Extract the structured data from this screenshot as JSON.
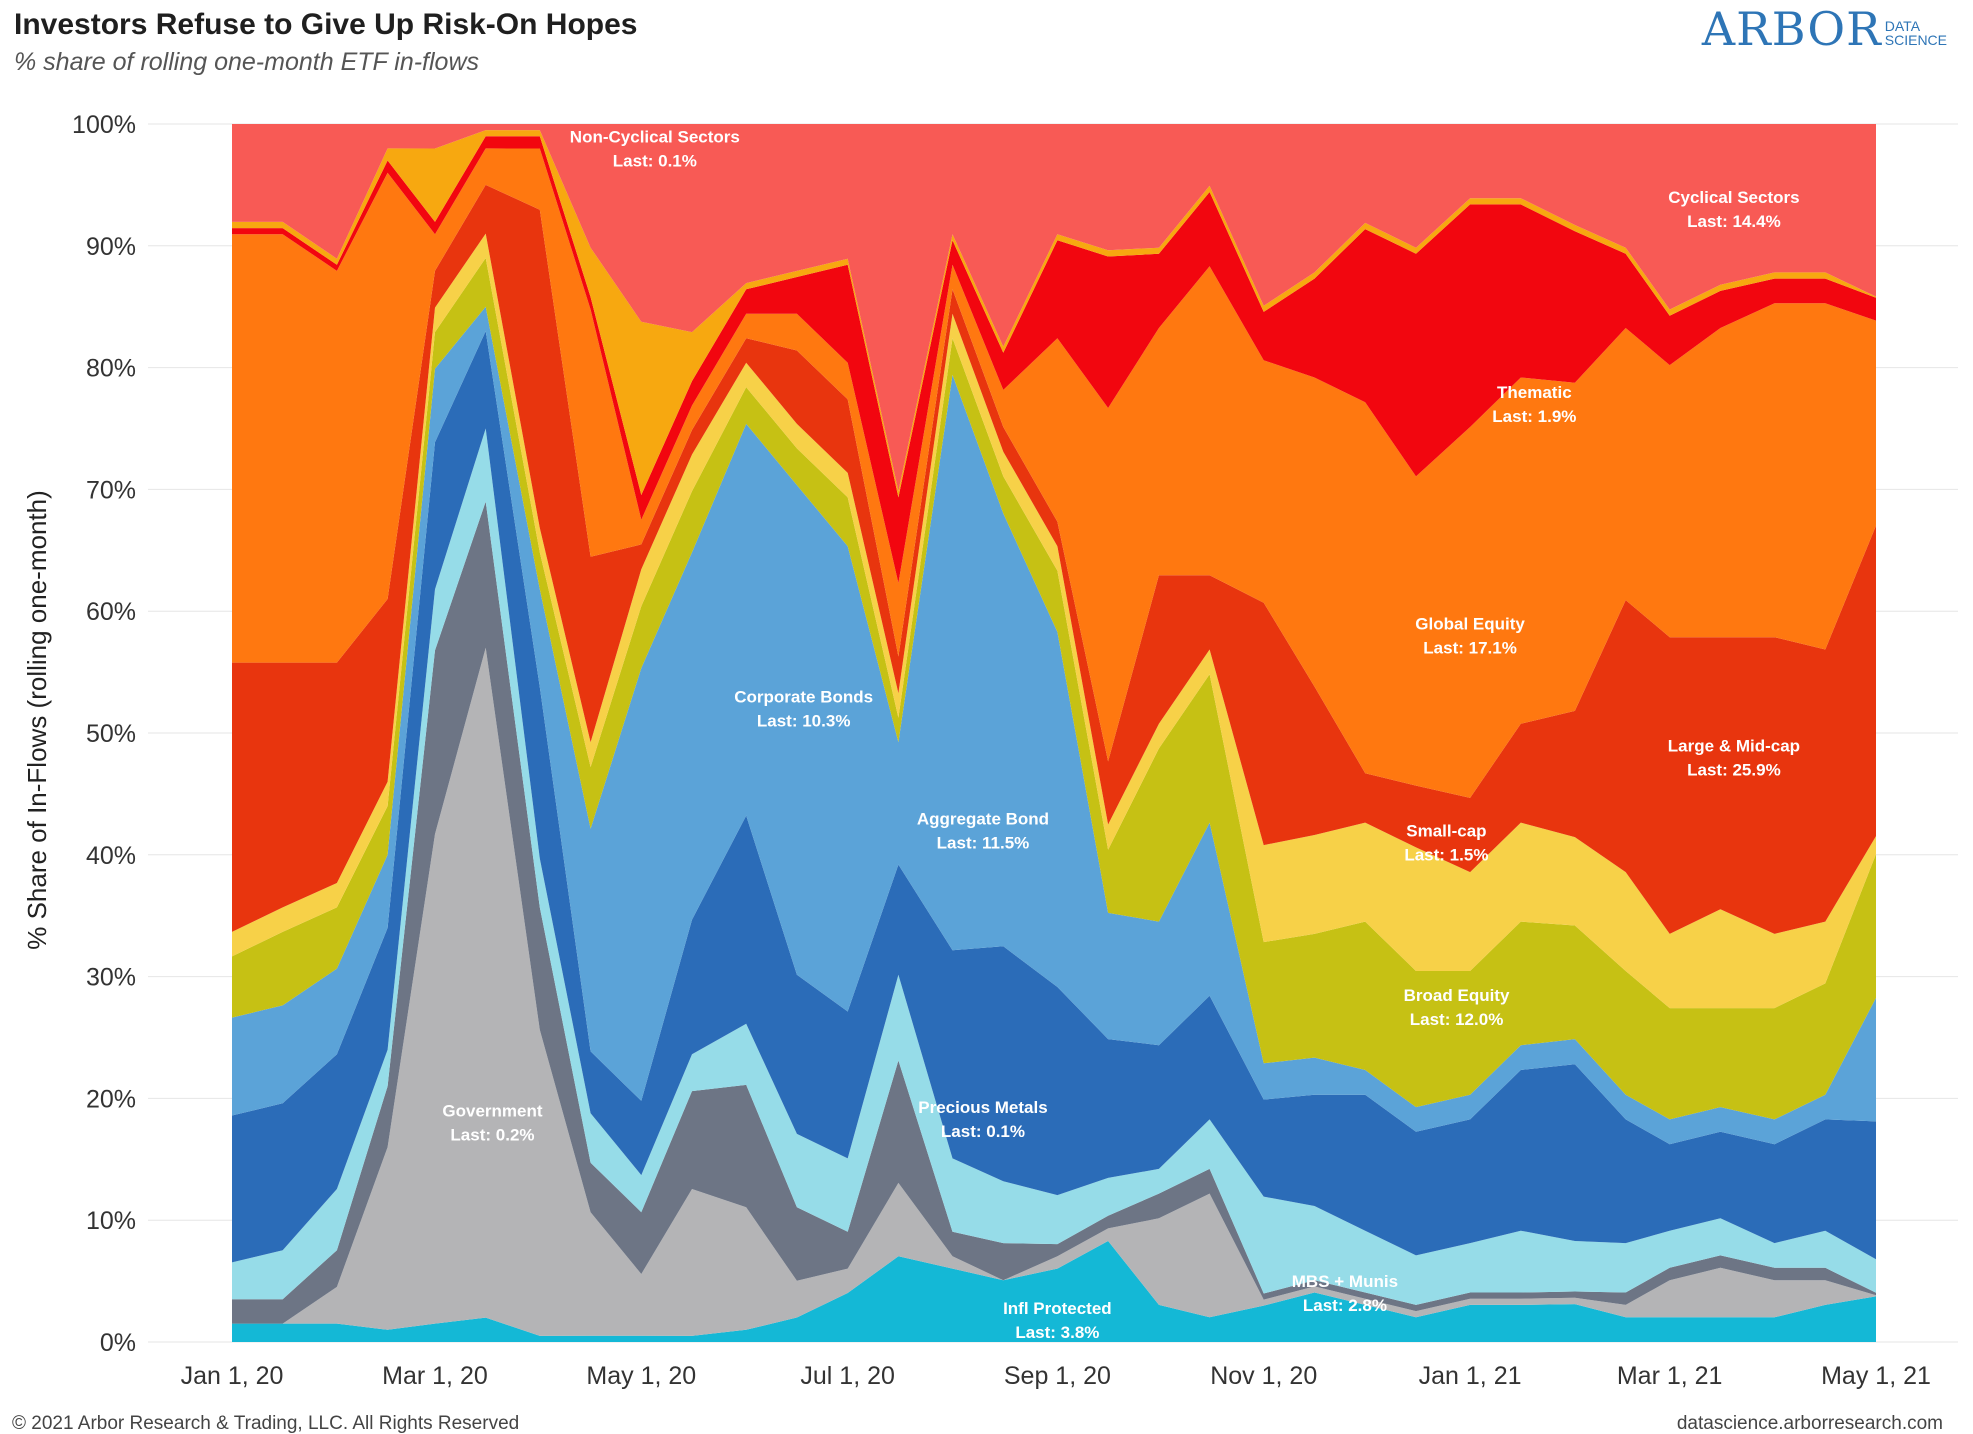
{
  "header": {
    "title": "Investors Refuse to Give Up Risk-On Hopes",
    "subtitle": "% share of rolling one-month ETF in-flows",
    "logo_main": "ARBOR",
    "logo_sub_1": "DATA",
    "logo_sub_2": "SCIENCE"
  },
  "footer": {
    "copyright": "© 2021 Arbor Research & Trading, LLC. All Rights Reserved",
    "website": "datascience.arborresearch.com"
  },
  "colors": {
    "Infl Protected": "#14b8d6",
    "Precious Metals": "#b4b4b6",
    "Government": "#6d7585",
    "MBS + Munis": "#96dce8",
    "Aggregate Bond": "#2b6cb8",
    "Corporate Bonds": "#5ba3d8",
    "Broad Equity": "#c6c114",
    "Small-cap": "#f7d148",
    "Large & Mid-cap": "#e8350e",
    "Global Equity": "#ff7810",
    "Thematic": "#f2060f",
    "Non-Cyclical Sectors": "#f7a810",
    "Cyclical Sectors": "#f85a55"
  },
  "chart_data": {
    "type": "area",
    "stacked": true,
    "normalized_percent": true,
    "x": [
      "2020-01-01",
      "2020-01-16",
      "2020-02-01",
      "2020-02-16",
      "2020-03-01",
      "2020-03-16",
      "2020-04-01",
      "2020-04-16",
      "2020-05-01",
      "2020-05-16",
      "2020-06-01",
      "2020-06-16",
      "2020-07-01",
      "2020-07-16",
      "2020-08-01",
      "2020-08-16",
      "2020-09-01",
      "2020-09-16",
      "2020-10-01",
      "2020-10-16",
      "2020-11-01",
      "2020-11-16",
      "2020-12-01",
      "2020-12-16",
      "2021-01-01",
      "2021-01-16",
      "2021-02-01",
      "2021-02-16",
      "2021-03-01",
      "2021-03-16",
      "2021-04-01",
      "2021-04-16",
      "2021-05-01"
    ],
    "ylim": [
      0,
      100
    ],
    "ylabel": "% Share of In-Flows (rolling one-month)",
    "xlabel": "",
    "x_tick_labels": [
      "Jan 1, 20",
      "Mar 1, 20",
      "May 1, 20",
      "Jul 1, 20",
      "Sep 1, 20",
      "Nov 1, 20",
      "Jan 1, 21",
      "Mar 1, 21",
      "May 1, 21"
    ],
    "y_tick_labels": [
      "0%",
      "10%",
      "20%",
      "30%",
      "40%",
      "50%",
      "60%",
      "70%",
      "80%",
      "90%",
      "100%"
    ],
    "grid": true,
    "legend": "none (series labeled inline)",
    "series": [
      {
        "name": "Infl Protected",
        "values": [
          1.5,
          1.5,
          1.5,
          1,
          1.5,
          2,
          0.5,
          0.5,
          0.5,
          0.5,
          1,
          2,
          4,
          7,
          6,
          5,
          6,
          8,
          3,
          2,
          3,
          4,
          3,
          2,
          3,
          3,
          3,
          2,
          2,
          2,
          2,
          3,
          3.8
        ]
      },
      {
        "name": "Precious Metals",
        "values": [
          0,
          0,
          3,
          15,
          40,
          55,
          25,
          10,
          5,
          12,
          10,
          3,
          2,
          6,
          1,
          0,
          1,
          1,
          7,
          10,
          0.5,
          0.5,
          0.5,
          0.5,
          0.5,
          0.5,
          0.5,
          1,
          3,
          4,
          3,
          2,
          0.1
        ]
      },
      {
        "name": "Government",
        "values": [
          2,
          2,
          3,
          5,
          15,
          12,
          10,
          4,
          5,
          8,
          10,
          6,
          3,
          10,
          2,
          3,
          1,
          1,
          2,
          2,
          0.5,
          0.5,
          0.5,
          0.5,
          0.5,
          0.5,
          0.5,
          1,
          1,
          1,
          1,
          1,
          0.2
        ]
      },
      {
        "name": "MBS + Munis",
        "values": [
          3,
          4,
          5,
          3,
          5,
          6,
          4,
          4,
          3,
          3,
          5,
          6,
          6,
          7,
          6,
          5,
          4,
          3,
          2,
          4,
          8,
          6,
          5,
          4,
          4,
          5,
          4,
          4,
          3,
          3,
          2,
          3,
          2.8
        ]
      },
      {
        "name": "Aggregate Bond",
        "values": [
          12,
          12,
          11,
          10,
          12,
          8,
          14,
          5,
          6,
          11,
          17,
          13,
          12,
          9,
          17,
          19,
          17,
          11,
          10,
          10,
          8,
          9,
          11,
          10,
          10,
          13,
          14,
          10,
          7,
          7,
          8,
          9,
          11.5
        ]
      },
      {
        "name": "Corporate Bonds",
        "values": [
          8,
          8,
          7,
          6,
          6,
          2,
          8,
          18,
          35,
          30,
          32,
          40,
          38,
          10,
          47,
          35,
          29,
          10,
          10,
          14,
          3,
          3,
          2,
          2,
          2,
          2,
          2,
          2,
          2,
          2,
          2,
          2,
          10.3
        ]
      },
      {
        "name": "Broad Equity",
        "values": [
          5,
          6,
          5,
          4,
          3,
          4,
          3,
          5,
          5,
          5,
          3,
          3,
          4,
          2,
          3,
          3,
          5,
          5,
          14,
          12,
          10,
          10,
          12,
          11,
          10,
          10,
          9,
          10,
          9,
          8,
          9,
          9,
          12.0
        ]
      },
      {
        "name": "Small-cap",
        "values": [
          2,
          2,
          2,
          2,
          2,
          2,
          2,
          2,
          3,
          3,
          2,
          2,
          2,
          2,
          2,
          2,
          2,
          2,
          2,
          2,
          8,
          8,
          8,
          10,
          8,
          8,
          7,
          8,
          6,
          8,
          6,
          5,
          1.5
        ]
      },
      {
        "name": "Large & Mid-cap",
        "values": [
          22,
          20,
          18,
          15,
          3,
          4,
          26,
          15,
          2,
          2,
          2,
          6,
          6,
          3,
          2,
          2,
          2,
          5,
          12,
          6,
          20,
          12,
          4,
          5,
          6,
          8,
          10,
          22,
          24,
          22,
          24,
          22,
          25.9
        ]
      },
      {
        "name": "Global Equity",
        "values": [
          35,
          35,
          32,
          35,
          3,
          3,
          5,
          20,
          2,
          2,
          2,
          3,
          3,
          6,
          2,
          3,
          15,
          28,
          20,
          25,
          20,
          25,
          30,
          25,
          30,
          28,
          26,
          22,
          22,
          25,
          27,
          28,
          17.1
        ]
      },
      {
        "name": "Thematic",
        "values": [
          0.5,
          0.5,
          0.5,
          1,
          1,
          1,
          1,
          1,
          2,
          2,
          2,
          3,
          8,
          7,
          2,
          3,
          8,
          12,
          6,
          6,
          4,
          8,
          14,
          18,
          18,
          14,
          12,
          6,
          4,
          3,
          2,
          2,
          1.9
        ]
      },
      {
        "name": "Non-Cyclical Sectors",
        "values": [
          0.5,
          0.5,
          0.5,
          1,
          6,
          0.5,
          0.5,
          4,
          14,
          4,
          0.5,
          0.5,
          0.5,
          0.5,
          0.5,
          0.5,
          0.5,
          0.5,
          0.5,
          0.5,
          0.5,
          0.5,
          0.5,
          0.5,
          0.5,
          0.5,
          0.5,
          0.5,
          0.5,
          0.5,
          0.5,
          0.5,
          0.1
        ]
      },
      {
        "name": "Cyclical Sectors",
        "values": [
          8,
          8,
          11,
          2,
          2,
          0.5,
          0.5,
          10,
          16,
          17,
          13,
          12,
          11,
          30,
          9,
          18,
          9,
          10,
          10,
          5,
          15,
          12,
          8,
          10,
          6,
          6,
          8,
          10,
          15,
          13,
          12,
          12,
          14.4
        ]
      }
    ],
    "annotations": [
      {
        "line1": "Cyclical Sectors",
        "line2": "Last: 14.4%",
        "x": "2021-03-20",
        "y": 93.5
      },
      {
        "line1": "Non-Cyclical Sectors",
        "line2": "Last: 0.1%",
        "x": "2020-05-05",
        "y": 98.5
      },
      {
        "line1": "Thematic",
        "line2": "Last: 1.9%",
        "x": "2021-01-20",
        "y": 77.5
      },
      {
        "line1": "Global Equity",
        "line2": "Last: 17.1%",
        "x": "2021-01-01",
        "y": 58.5
      },
      {
        "line1": "Large & Mid-cap",
        "line2": "Last: 25.9%",
        "x": "2021-03-20",
        "y": 48.5
      },
      {
        "line1": "Corporate Bonds",
        "line2": "Last: 10.3%",
        "x": "2020-06-18",
        "y": 52.5
      },
      {
        "line1": "Aggregate Bond",
        "line2": "Last: 11.5%",
        "x": "2020-08-10",
        "y": 42.5
      },
      {
        "line1": "Small-cap",
        "line2": "Last: 1.5%",
        "x": "2020-12-25",
        "y": 41.5
      },
      {
        "line1": "Broad Equity",
        "line2": "Last: 12.0%",
        "x": "2020-12-28",
        "y": 28
      },
      {
        "line1": "Government",
        "line2": "Last: 0.2%",
        "x": "2020-03-18",
        "y": 18.5
      },
      {
        "line1": "Precious Metals",
        "line2": "Last: 0.1%",
        "x": "2020-08-10",
        "y": 18.8
      },
      {
        "line1": "MBS + Munis",
        "line2": "Last: 2.8%",
        "x": "2020-11-25",
        "y": 4.5
      },
      {
        "line1": "Infl Protected",
        "line2": "Last: 3.8%",
        "x": "2020-09-01",
        "y": 2.3
      }
    ]
  }
}
